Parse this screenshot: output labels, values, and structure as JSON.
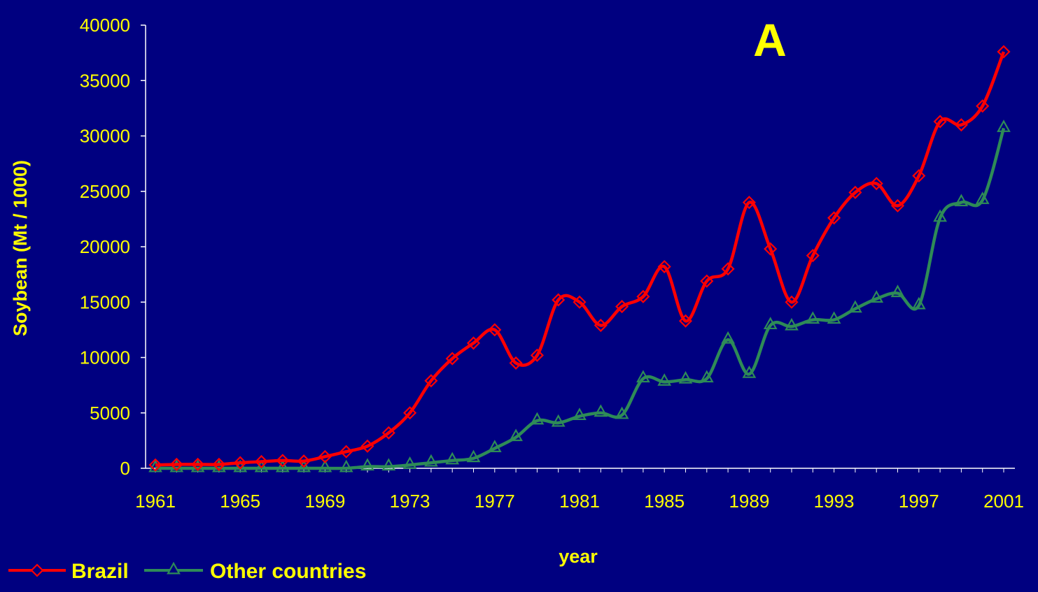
{
  "colors": {
    "background": "#000080",
    "text": "#ffff00",
    "axis": "#ffffff",
    "brazil": "#ff0000",
    "other": "#2e8b57"
  },
  "chart_data": {
    "type": "line",
    "panel_label": "A",
    "xlabel": "year",
    "ylabel": "Soybean (Mt / 1000)",
    "ylim": [
      0,
      40000
    ],
    "yticks": [
      "0",
      "5000",
      "10000",
      "15000",
      "20000",
      "25000",
      "30000",
      "35000",
      "40000"
    ],
    "xlim": [
      1961,
      2001
    ],
    "xticks": [
      "1961",
      "1965",
      "1969",
      "1973",
      "1977",
      "1981",
      "1985",
      "1989",
      "1993",
      "1997",
      "2001"
    ],
    "grid": false,
    "legend_position": "bottom-left",
    "x": [
      1961,
      1962,
      1963,
      1964,
      1965,
      1966,
      1967,
      1968,
      1969,
      1970,
      1971,
      1972,
      1973,
      1974,
      1975,
      1976,
      1977,
      1978,
      1979,
      1980,
      1981,
      1982,
      1983,
      1984,
      1985,
      1986,
      1987,
      1988,
      1989,
      1990,
      1991,
      1992,
      1993,
      1994,
      1995,
      1996,
      1997,
      1998,
      1999,
      2000,
      2001
    ],
    "series": [
      {
        "name": "Brazil",
        "marker": "diamond",
        "values": [
          300,
          350,
          350,
          350,
          500,
          600,
          700,
          650,
          1050,
          1500,
          2000,
          3200,
          5000,
          7900,
          9900,
          11300,
          12500,
          9500,
          10200,
          15200,
          15000,
          12900,
          14600,
          15500,
          18200,
          13300,
          16900,
          18000,
          24000,
          19800,
          15000,
          19200,
          22600,
          24900,
          25700,
          23700,
          26400,
          31300,
          31000,
          32700,
          37600
        ]
      },
      {
        "name": "Other countries",
        "marker": "triangle",
        "values": [
          0,
          0,
          0,
          0,
          0,
          0,
          0,
          0,
          0,
          0,
          150,
          150,
          300,
          500,
          700,
          900,
          1800,
          2800,
          4300,
          4100,
          4700,
          5000,
          4800,
          8100,
          7800,
          8000,
          8100,
          11600,
          8500,
          12900,
          12800,
          13400,
          13400,
          14400,
          15300,
          15800,
          14700,
          22600,
          24000,
          24200,
          30700
        ]
      }
    ]
  }
}
